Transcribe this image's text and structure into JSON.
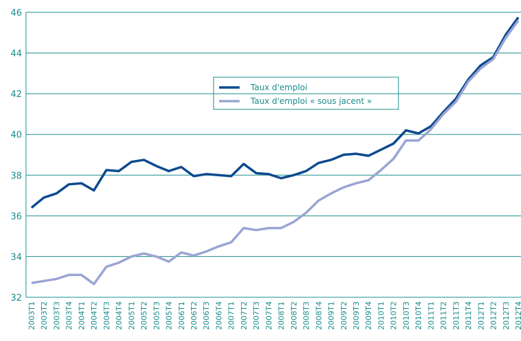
{
  "chart_data": {
    "type": "line",
    "categories": [
      "2003T1",
      "2003T2",
      "2003T3",
      "2003T4",
      "2004T1",
      "2004T2",
      "2004T3",
      "2004T4",
      "2005T1",
      "2005T2",
      "2005T3",
      "2005T4",
      "2006T1",
      "2006T2",
      "2006T3",
      "2006T4",
      "2007T1",
      "2007T2",
      "2007T3",
      "2007T4",
      "2008T1",
      "2008T2",
      "2008T3",
      "2008T4",
      "2009T1",
      "2009T2",
      "2009T3",
      "2009T4",
      "2010T1",
      "2010T2",
      "2010T3",
      "2010T4",
      "2011T1",
      "2011T2",
      "2011T3",
      "2011T4",
      "2012T1",
      "2012T2",
      "2012T3",
      "2012T4"
    ],
    "series": [
      {
        "name": "Taux d'emploi",
        "color": "#0d4a8f",
        "values": [
          36.4,
          36.9,
          37.1,
          37.55,
          37.6,
          37.25,
          38.25,
          38.2,
          38.65,
          38.75,
          38.45,
          38.2,
          38.4,
          37.95,
          38.05,
          38.0,
          37.95,
          38.55,
          38.1,
          38.05,
          37.85,
          38.0,
          38.2,
          38.6,
          38.75,
          39.0,
          39.05,
          38.95,
          39.25,
          39.55,
          40.2,
          40.05,
          40.4,
          41.1,
          41.75,
          42.7,
          43.4,
          43.8,
          44.9,
          45.75
        ]
      },
      {
        "name": "Taux d'emploi « sous jacent »",
        "color": "#9aa5d4",
        "values": [
          32.7,
          32.8,
          32.9,
          33.1,
          33.1,
          32.65,
          33.5,
          33.7,
          34.0,
          34.15,
          34.0,
          33.75,
          34.2,
          34.05,
          34.25,
          34.5,
          34.7,
          35.4,
          35.3,
          35.4,
          35.4,
          35.7,
          36.15,
          36.75,
          37.1,
          37.4,
          37.6,
          37.75,
          38.25,
          38.8,
          39.7,
          39.7,
          40.25,
          41.0,
          41.6,
          42.6,
          43.25,
          43.7,
          44.75,
          45.6
        ]
      }
    ],
    "ylim": [
      32,
      46
    ],
    "yticks": [
      32,
      34,
      36,
      38,
      40,
      42,
      44,
      46
    ],
    "grid": true
  }
}
